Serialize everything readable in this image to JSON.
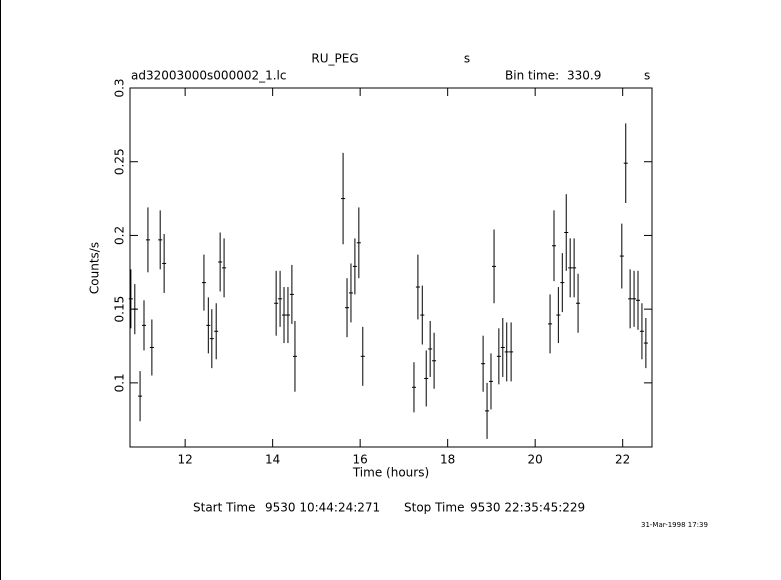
{
  "chart_data": {
    "type": "errorbar",
    "title": "RU_PEG",
    "title_unit": "s",
    "file": "ad32003000s000002_1.lc",
    "bin_time_label": "Bin time:",
    "bin_time": 330.9,
    "bin_time_unit": "s",
    "xlabel": "Time (hours)",
    "ylabel": "Counts/s",
    "start_time_label": "Start Time",
    "start_time": "9530 10:44:24:271",
    "stop_time_label": "Stop Time",
    "stop_time": "9530 22:35:45:229",
    "date": "31-Mar-1998 17:39",
    "color": "#000000",
    "xlim": [
      10.74,
      22.67
    ],
    "xticks": [
      12,
      14,
      16,
      18,
      20,
      22
    ],
    "ylim": [
      0.0565,
      0.3
    ],
    "yticks": [
      0.1,
      0.15,
      0.2,
      0.25,
      0.3
    ],
    "x": [
      10.76,
      10.85,
      10.97,
      11.06,
      11.15,
      11.24,
      11.43,
      11.52,
      12.43,
      12.53,
      12.61,
      12.71,
      12.8,
      12.89,
      14.08,
      14.17,
      14.26,
      14.35,
      14.44,
      14.51,
      15.61,
      15.7,
      15.79,
      15.88,
      15.97,
      16.06,
      17.23,
      17.32,
      17.42,
      17.51,
      17.6,
      17.69,
      18.81,
      18.9,
      18.99,
      19.06,
      19.17,
      19.26,
      19.35,
      19.45,
      20.34,
      20.43,
      20.53,
      20.62,
      20.71,
      20.8,
      20.89,
      20.98,
      21.98,
      22.07,
      22.17,
      22.26,
      22.35,
      22.44,
      22.53
    ],
    "values": [
      0.157,
      0.15,
      0.091,
      0.139,
      0.197,
      0.124,
      0.197,
      0.181,
      0.168,
      0.139,
      0.13,
      0.135,
      0.182,
      0.178,
      0.154,
      0.157,
      0.146,
      0.146,
      0.16,
      0.118,
      0.225,
      0.151,
      0.161,
      0.179,
      0.195,
      0.118,
      0.097,
      0.165,
      0.146,
      0.103,
      0.123,
      0.115,
      0.113,
      0.081,
      0.101,
      0.179,
      0.118,
      0.124,
      0.121,
      0.121,
      0.14,
      0.193,
      0.146,
      0.168,
      0.202,
      0.178,
      0.178,
      0.154,
      0.186,
      0.249,
      0.157,
      0.157,
      0.156,
      0.135,
      0.127
    ],
    "errors": [
      0.02,
      0.017,
      0.017,
      0.017,
      0.022,
      0.019,
      0.02,
      0.02,
      0.019,
      0.019,
      0.02,
      0.019,
      0.02,
      0.02,
      0.022,
      0.019,
      0.019,
      0.019,
      0.02,
      0.024,
      0.031,
      0.02,
      0.02,
      0.019,
      0.024,
      0.02,
      0.017,
      0.022,
      0.02,
      0.019,
      0.019,
      0.019,
      0.019,
      0.019,
      0.019,
      0.025,
      0.019,
      0.02,
      0.02,
      0.02,
      0.02,
      0.024,
      0.019,
      0.02,
      0.026,
      0.02,
      0.02,
      0.02,
      0.022,
      0.027,
      0.02,
      0.019,
      0.02,
      0.019,
      0.017
    ]
  }
}
